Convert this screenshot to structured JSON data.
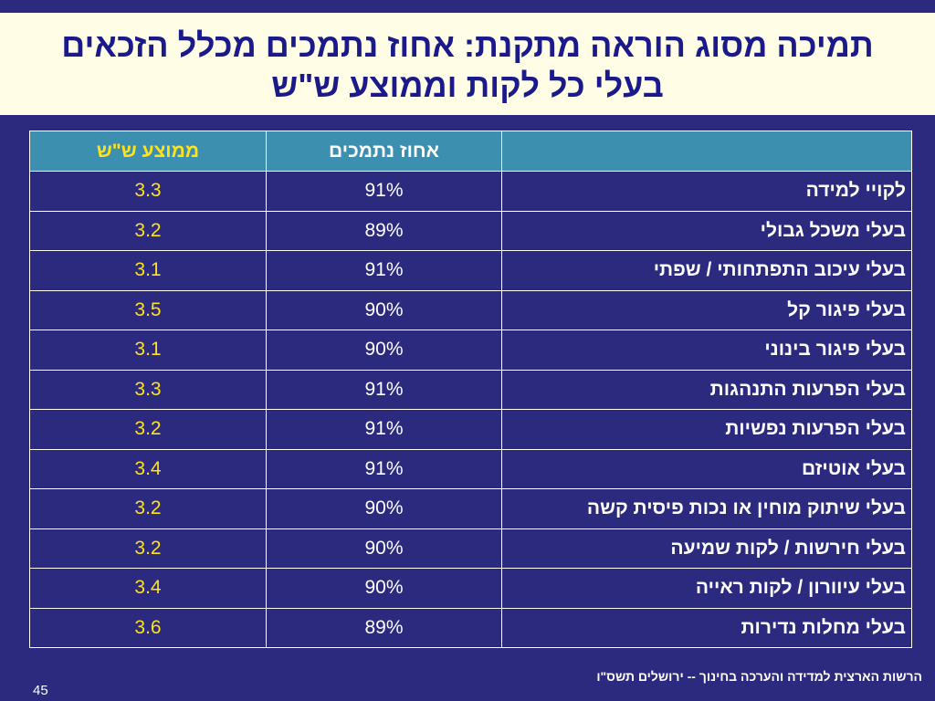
{
  "title": {
    "line1": "תמיכה מסוג הוראה מתקנת: אחוז נתמכים מכלל הזכאים",
    "line2": "בעלי כל לקות וממוצע ש\"ש"
  },
  "table": {
    "headers": {
      "label": "",
      "pct": "אחוז נתמכים",
      "avg": "ממוצע ש\"ש"
    },
    "rows": [
      {
        "label": "לקויי למידה",
        "pct": "91%",
        "avg": "3.3"
      },
      {
        "label": "בעלי משכל גבולי",
        "pct": "89%",
        "avg": "3.2"
      },
      {
        "label": "בעלי עיכוב התפתחותי / שפתי",
        "pct": "91%",
        "avg": "3.1"
      },
      {
        "label": "בעלי פיגור קל",
        "pct": "90%",
        "avg": "3.5"
      },
      {
        "label": "בעלי פיגור בינוני",
        "pct": "90%",
        "avg": "3.1"
      },
      {
        "label": "בעלי הפרעות התנהגות",
        "pct": "91%",
        "avg": "3.3"
      },
      {
        "label": "בעלי הפרעות נפשיות",
        "pct": "91%",
        "avg": "3.2"
      },
      {
        "label": "בעלי אוטיזם",
        "pct": "91%",
        "avg": "3.4"
      },
      {
        "label": "בעלי שיתוק מוחין או נכות פיסית קשה",
        "pct": "90%",
        "avg": "3.2"
      },
      {
        "label": "בעלי חירשות / לקות שמיעה",
        "pct": "90%",
        "avg": "3.2"
      },
      {
        "label": "בעלי עיוורון / לקות ראייה",
        "pct": "90%",
        "avg": "3.4"
      },
      {
        "label": "בעלי מחלות נדירות",
        "pct": "89%",
        "avg": "3.6"
      }
    ]
  },
  "footer": {
    "source": "הרשות הארצית למדידה והערכה בחינוך  -- ירושלים תשס\"ו",
    "page_number": "45"
  },
  "colors": {
    "background": "#2b2a7e",
    "title_bg": "#fffde6",
    "title_text": "#1a1a8a",
    "header_bg": "#3d8fb0",
    "avg_text": "#ffe21a"
  }
}
